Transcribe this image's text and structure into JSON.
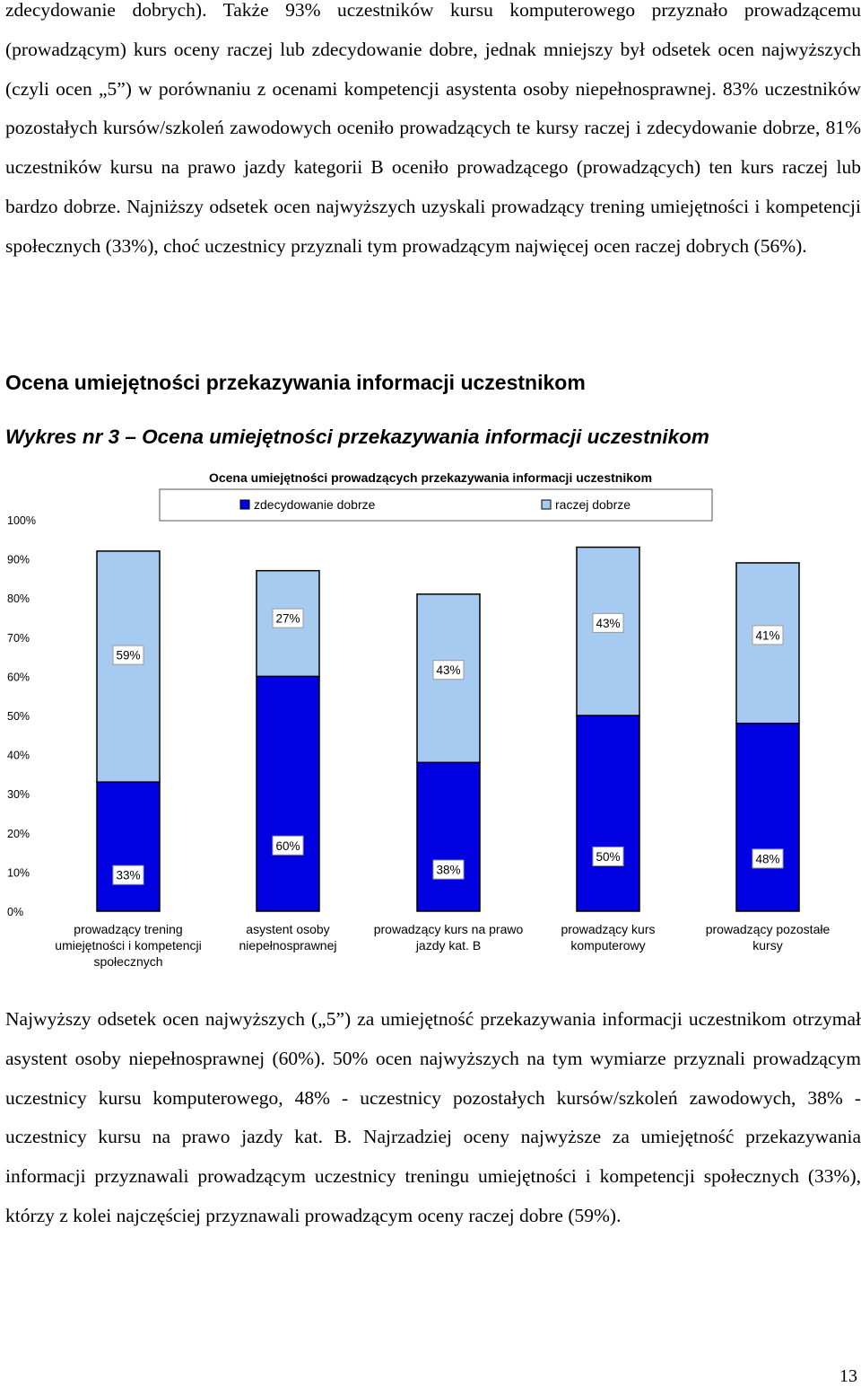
{
  "document": {
    "paragraph_top": "zdecydowanie dobrych). Także 93% uczestników kursu komputerowego przyznało prowadzącemu (prowadzącym) kurs oceny raczej lub zdecydowanie dobre, jednak mniejszy był odsetek ocen najwyższych (czyli ocen „5”) w porównaniu z ocenami kompetencji asystenta osoby niepełnosprawnej. 83% uczestników pozostałych kursów/szkoleń zawodowych oceniło prowadzących te kursy raczej i zdecydowanie dobrze, 81% uczestników kursu na prawo jazdy kategorii B oceniło prowadzącego (prowadzących) ten kurs raczej lub bardzo dobrze. Najniższy odsetek ocen najwyższych uzyskali prowadzący trening umiejętności i kompetencji społecznych (33%), choć uczestnicy przyznali tym prowadzącym najwięcej ocen raczej dobrych (56%).",
    "section_title": "Ocena umiejętności przekazywania informacji uczestnikom",
    "figure_caption": "Wykres nr 3 – Ocena umiejętności przekazywania informacji uczestnikom",
    "paragraph_bottom": "Najwyższy odsetek ocen najwyższych („5”) za umiejętność przekazywania informacji uczestnikom otrzymał asystent osoby niepełnosprawnej (60%). 50% ocen najwyższych na tym wymiarze przyznali prowadzącym uczestnicy kursu komputerowego, 48% - uczestnicy pozostałych kursów/szkoleń zawodowych, 38% - uczestnicy kursu na prawo jazdy kat. B. Najrzadziej oceny najwyższe za umiejętność przekazywania informacji przyznawali prowadzącym uczestnicy treningu umiejętności i kompetencji społecznych (33%), którzy z kolei najczęściej przyznawali prowadzącym oceny raczej dobre (59%).",
    "page_number": "13"
  },
  "chart_data": {
    "type": "bar",
    "stacked": true,
    "title": "Ocena umiejętności prowadzących przekazywania informacji uczestnikom",
    "categories": [
      [
        "prowadzący trening",
        "umiejętności i kompetencji",
        "społecznych"
      ],
      [
        "asystent osoby",
        "niepełnosprawnej"
      ],
      [
        "prowadzący kurs na prawo",
        "jazdy kat. B"
      ],
      [
        "prowadzący kurs",
        "komputerowy"
      ],
      [
        "prowadzący pozostałe",
        "kursy"
      ]
    ],
    "series": [
      {
        "name": "zdecydowanie dobrze",
        "values": [
          33,
          60,
          38,
          50,
          48
        ],
        "labels": [
          "33%",
          "60%",
          "38%",
          "50%",
          "48%"
        ],
        "color": "#0000e0"
      },
      {
        "name": "raczej dobrze",
        "values": [
          59,
          27,
          43,
          43,
          41
        ],
        "labels": [
          "59%",
          "27%",
          "43%",
          "43%",
          "41%"
        ],
        "color": "#a6caf0"
      }
    ],
    "ylim": [
      0,
      100
    ],
    "yticks": [
      "0%",
      "10%",
      "20%",
      "30%",
      "40%",
      "50%",
      "60%",
      "70%",
      "80%",
      "90%",
      "100%"
    ],
    "legend_position": "top",
    "grid": false
  }
}
